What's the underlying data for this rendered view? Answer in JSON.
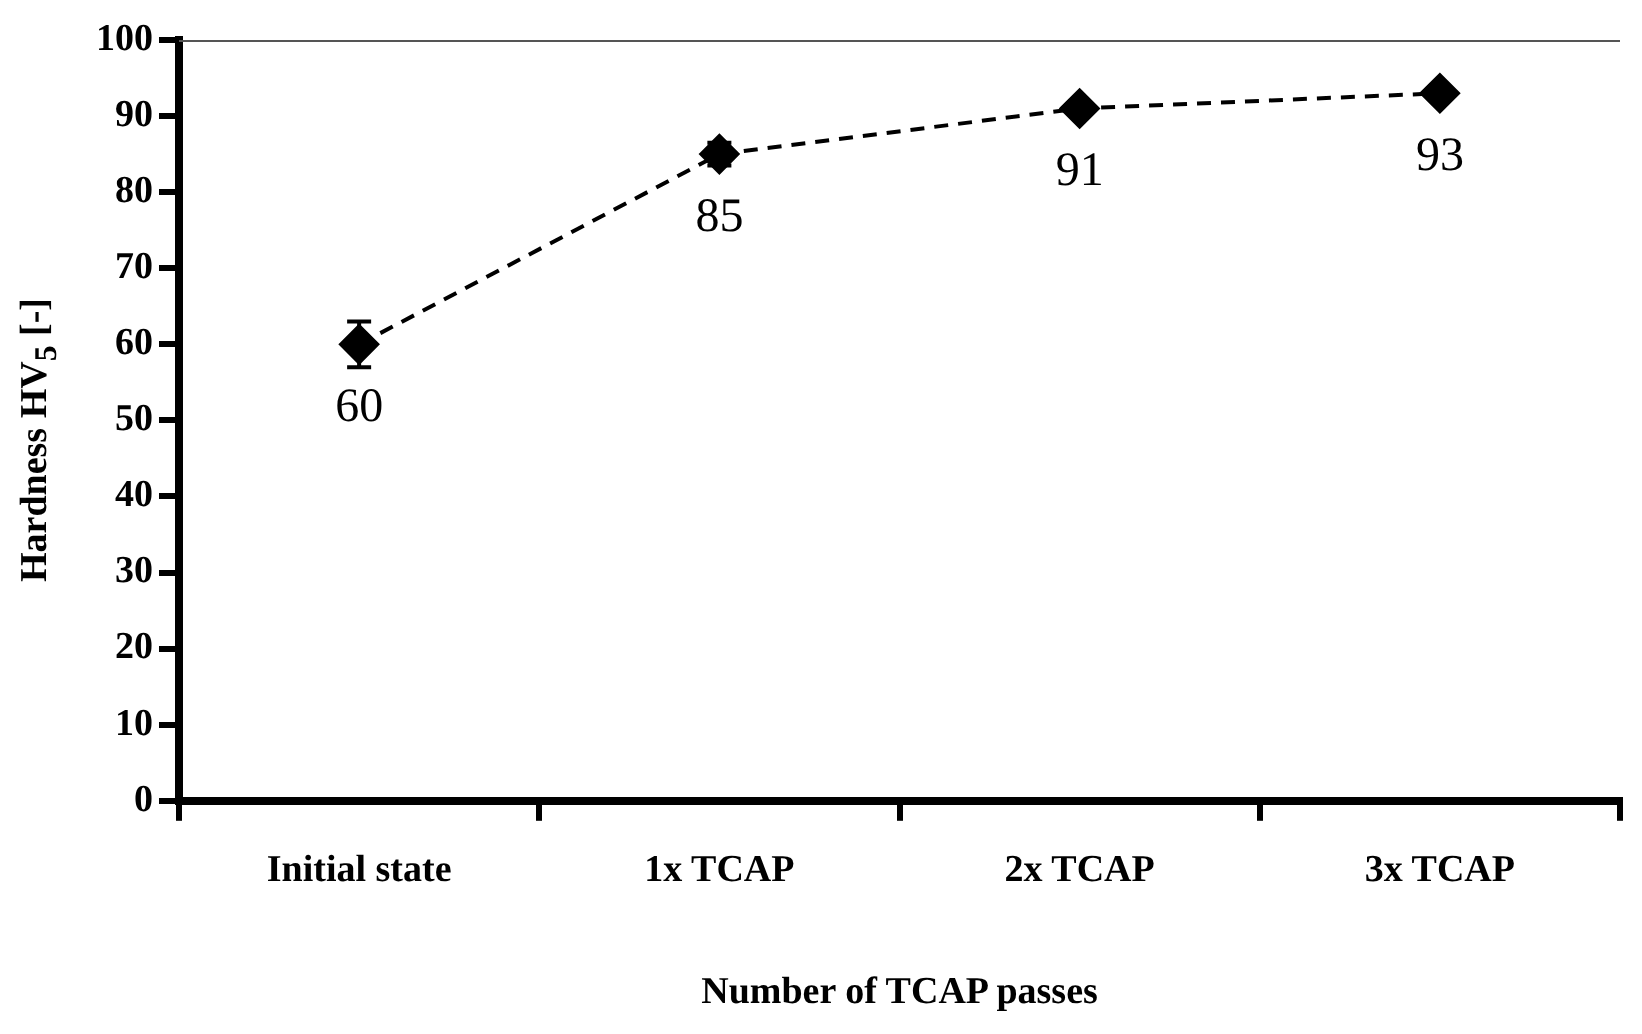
{
  "chart_data": {
    "type": "line",
    "xlabel": "Number of TCAP passes",
    "ylabel": "Hardness HV$_{5}$ [-]",
    "categories": [
      "Initial state",
      "1x TCAP",
      "2x TCAP",
      "3x TCAP"
    ],
    "series": [
      {
        "color": "#000000",
        "values": [
          60,
          85,
          91,
          93
        ],
        "errors": [
          3,
          1.5,
          null,
          null
        ]
      }
    ],
    "ylim": [
      0,
      100
    ],
    "yticks": [
      0,
      10,
      20,
      30,
      40,
      50,
      60,
      70,
      80,
      90,
      100
    ],
    "grid": false,
    "legend": false,
    "marker": "diamond",
    "line_style": "dashed",
    "data_labels": true
  }
}
